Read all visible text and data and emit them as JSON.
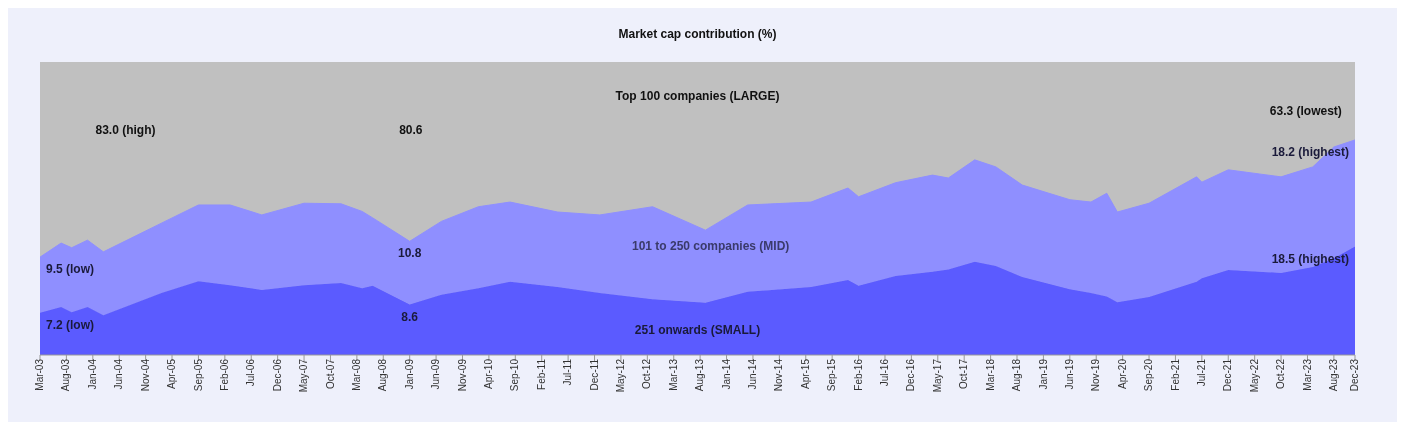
{
  "chart_data": {
    "type": "area",
    "title": "Market cap contribution (%)",
    "stacked": true,
    "legend": false,
    "grid": false,
    "tick_labels": "x",
    "x": [
      "2003-03",
      "2003-07",
      "2003-09",
      "2003-12",
      "2004-03",
      "2005-02",
      "2005-09",
      "2006-03",
      "2006-09",
      "2007-05",
      "2007-12",
      "2008-04",
      "2008-06",
      "2009-01",
      "2009-07",
      "2010-02",
      "2010-08",
      "2011-05",
      "2012-01",
      "2012-11",
      "2013-09",
      "2014-05",
      "2015-05",
      "2015-12",
      "2016-02",
      "2016-09",
      "2017-04",
      "2017-07",
      "2017-12",
      "2018-04",
      "2018-09",
      "2019-06",
      "2019-10",
      "2020-01",
      "2020-03",
      "2020-09",
      "2021-06",
      "2021-07",
      "2021-12",
      "2022-10",
      "2023-04",
      "2023-08",
      "2023-12"
    ],
    "series": [
      {
        "name": "251 onwards (SMALL)",
        "color": "#5b5bff",
        "values": [
          7.2,
          8.2,
          7.3,
          8.2,
          6.8,
          10.6,
          12.6,
          11.9,
          11.1,
          11.9,
          12.3,
          11.4,
          11.8,
          8.6,
          10.3,
          11.4,
          12.5,
          11.6,
          10.6,
          9.5,
          8.9,
          10.8,
          11.6,
          12.8,
          11.8,
          13.5,
          14.2,
          14.6,
          15.9,
          15.2,
          13.3,
          11.2,
          10.6,
          10.0,
          9.0,
          9.9,
          12.5,
          13.1,
          14.5,
          14.0,
          15.0,
          16.5,
          18.5
        ],
        "value_labels": [
          "7.2 (low)",
          null,
          null,
          null,
          null,
          null,
          null,
          null,
          null,
          null,
          null,
          null,
          null,
          "8.6",
          null,
          null,
          null,
          null,
          null,
          null,
          null,
          null,
          null,
          null,
          null,
          null,
          null,
          null,
          null,
          null,
          null,
          null,
          null,
          null,
          null,
          null,
          null,
          null,
          null,
          null,
          null,
          null,
          "18.5 (highest)"
        ]
      },
      {
        "name": "101 to 250 companies (MID)",
        "color": "#8f8fff",
        "values": [
          9.5,
          10.9,
          11.0,
          11.4,
          10.8,
          11.9,
          13.0,
          13.7,
          12.8,
          14.0,
          13.5,
          13.1,
          11.6,
          10.8,
          12.5,
          13.9,
          13.6,
          12.8,
          13.3,
          15.8,
          12.4,
          14.8,
          14.5,
          15.7,
          15.2,
          15.9,
          16.5,
          15.6,
          17.4,
          16.9,
          15.7,
          15.3,
          15.5,
          17.6,
          15.4,
          16.0,
          17.9,
          16.4,
          17.1,
          16.4,
          17.1,
          19.0,
          18.2
        ],
        "value_labels": [
          "9.5 (low)",
          null,
          null,
          null,
          null,
          null,
          null,
          null,
          null,
          null,
          null,
          null,
          null,
          "10.8",
          null,
          null,
          null,
          null,
          null,
          null,
          null,
          null,
          null,
          null,
          null,
          null,
          null,
          null,
          null,
          null,
          null,
          null,
          null,
          null,
          null,
          null,
          null,
          null,
          null,
          null,
          null,
          null,
          "18.2 (highest)"
        ]
      }
    ],
    "annotations": [
      "Top 100 companies (LARGE)",
      "83.0 (high)",
      "80.6",
      "63.3 (lowest)"
    ],
    "xlim": [
      "2003-03",
      "2023-12"
    ],
    "ylim": [
      0,
      50
    ],
    "xticks": [
      {
        "value": "2003-03",
        "label": "Mar-03"
      },
      {
        "value": "2003-08",
        "label": "Aug-03"
      },
      {
        "value": "2004-01",
        "label": "Jan-04"
      },
      {
        "value": "2004-06",
        "label": "Jun-04"
      },
      {
        "value": "2004-11",
        "label": "Nov-04"
      },
      {
        "value": "2005-04",
        "label": "Apr-05"
      },
      {
        "value": "2005-09",
        "label": "Sep-05"
      },
      {
        "value": "2006-02",
        "label": "Feb-06"
      },
      {
        "value": "2006-07",
        "label": "Jul-06"
      },
      {
        "value": "2006-12",
        "label": "Dec-06"
      },
      {
        "value": "2007-05",
        "label": "May-07"
      },
      {
        "value": "2007-10",
        "label": "Oct-07"
      },
      {
        "value": "2008-03",
        "label": "Mar-08"
      },
      {
        "value": "2008-08",
        "label": "Aug-08"
      },
      {
        "value": "2009-01",
        "label": "Jan-09"
      },
      {
        "value": "2009-06",
        "label": "Jun-09"
      },
      {
        "value": "2009-11",
        "label": "Nov-09"
      },
      {
        "value": "2010-04",
        "label": "Apr-10"
      },
      {
        "value": "2010-09",
        "label": "Sep-10"
      },
      {
        "value": "2011-02",
        "label": "Feb-11"
      },
      {
        "value": "2011-07",
        "label": "Jul-11"
      },
      {
        "value": "2011-12",
        "label": "Dec-11"
      },
      {
        "value": "2012-05",
        "label": "May-12"
      },
      {
        "value": "2012-10",
        "label": "Oct-12"
      },
      {
        "value": "2013-03",
        "label": "Mar-13"
      },
      {
        "value": "2013-08",
        "label": "Aug-13"
      },
      {
        "value": "2014-01",
        "label": "Jan-14"
      },
      {
        "value": "2014-06",
        "label": "Jun-14"
      },
      {
        "value": "2014-11",
        "label": "Nov-14"
      },
      {
        "value": "2015-04",
        "label": "Apr-15"
      },
      {
        "value": "2015-09",
        "label": "Sep-15"
      },
      {
        "value": "2016-02",
        "label": "Feb-16"
      },
      {
        "value": "2016-07",
        "label": "Jul-16"
      },
      {
        "value": "2016-12",
        "label": "Dec-16"
      },
      {
        "value": "2017-05",
        "label": "May-17"
      },
      {
        "value": "2017-10",
        "label": "Oct-17"
      },
      {
        "value": "2018-03",
        "label": "Mar-18"
      },
      {
        "value": "2018-08",
        "label": "Aug-18"
      },
      {
        "value": "2019-01",
        "label": "Jan-19"
      },
      {
        "value": "2019-06",
        "label": "Jun-19"
      },
      {
        "value": "2019-11",
        "label": "Nov-19"
      },
      {
        "value": "2020-04",
        "label": "Apr-20"
      },
      {
        "value": "2020-09",
        "label": "Sep-20"
      },
      {
        "value": "2021-02",
        "label": "Feb-21"
      },
      {
        "value": "2021-07",
        "label": "Jul-21"
      },
      {
        "value": "2021-12",
        "label": "Dec-21"
      },
      {
        "value": "2022-05",
        "label": "May-22"
      },
      {
        "value": "2022-10",
        "label": "Oct-22"
      },
      {
        "value": "2023-03",
        "label": "Mar-23"
      },
      {
        "value": "2023-08",
        "label": "Aug-23"
      },
      {
        "value": "2023-12",
        "label": "Dec-23"
      }
    ]
  }
}
